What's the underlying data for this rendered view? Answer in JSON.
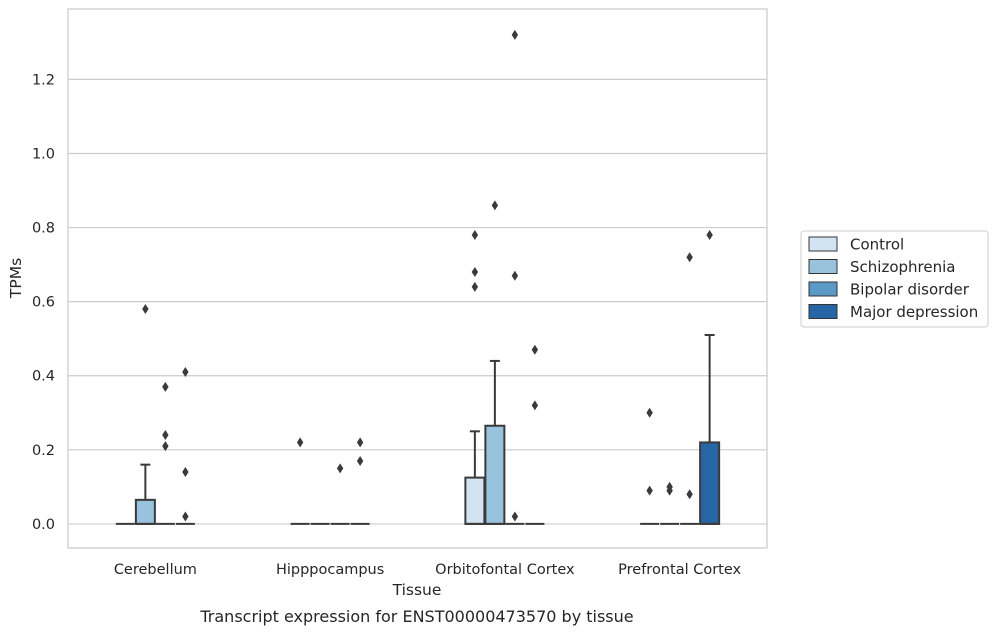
{
  "chart_data": {
    "type": "boxplot",
    "title": "Transcript expression for ENST00000473570 by tissue",
    "xlabel": "Tissue",
    "ylabel": "TPMs",
    "ylim": [
      -0.065,
      1.39
    ],
    "yticks": [
      0.0,
      0.2,
      0.4,
      0.6,
      0.8,
      1.0,
      1.2
    ],
    "ytick_labels": [
      "0.0",
      "0.2",
      "0.4",
      "0.6",
      "0.8",
      "1.0",
      "1.2"
    ],
    "categories": [
      "Cerebellum",
      "Hipppocampus",
      "Orbitofontal Cortex",
      "Prefrontal Cortex"
    ],
    "grid": "horizontal",
    "legend_position": "right",
    "series": [
      {
        "name": "Control",
        "color": "#d4e3f1",
        "boxes": [
          {
            "q1": 0,
            "median": 0,
            "q3": 0,
            "whisker_low": 0,
            "whisker_high": 0,
            "outliers": []
          },
          {
            "q1": 0,
            "median": 0,
            "q3": 0,
            "whisker_low": 0,
            "whisker_high": 0,
            "outliers": [
              0.22
            ]
          },
          {
            "q1": 0,
            "median": 0,
            "q3": 0.125,
            "whisker_low": 0,
            "whisker_high": 0.25,
            "outliers": [
              0.64,
              0.68,
              0.78
            ]
          },
          {
            "q1": 0,
            "median": 0,
            "q3": 0,
            "whisker_low": 0,
            "whisker_high": 0,
            "outliers": [
              0.09,
              0.3
            ]
          }
        ]
      },
      {
        "name": "Schizophrenia",
        "color": "#99c2dc",
        "boxes": [
          {
            "q1": 0,
            "median": 0,
            "q3": 0.065,
            "whisker_low": 0,
            "whisker_high": 0.16,
            "outliers": [
              0.58
            ]
          },
          {
            "q1": 0,
            "median": 0,
            "q3": 0,
            "whisker_low": 0,
            "whisker_high": 0,
            "outliers": []
          },
          {
            "q1": 0,
            "median": 0,
            "q3": 0.265,
            "whisker_low": 0,
            "whisker_high": 0.44,
            "outliers": [
              0.86
            ]
          },
          {
            "q1": 0,
            "median": 0,
            "q3": 0,
            "whisker_low": 0,
            "whisker_high": 0,
            "outliers": [
              0.09,
              0.1
            ]
          }
        ]
      },
      {
        "name": "Bipolar disorder",
        "color": "#5b9ac7",
        "boxes": [
          {
            "q1": 0,
            "median": 0,
            "q3": 0,
            "whisker_low": 0,
            "whisker_high": 0,
            "outliers": [
              0.21,
              0.24,
              0.37
            ]
          },
          {
            "q1": 0,
            "median": 0,
            "q3": 0,
            "whisker_low": 0,
            "whisker_high": 0,
            "outliers": [
              0.15
            ]
          },
          {
            "q1": 0,
            "median": 0,
            "q3": 0,
            "whisker_low": 0,
            "whisker_high": 0,
            "outliers": [
              0.02,
              0.67,
              1.32
            ]
          },
          {
            "q1": 0,
            "median": 0,
            "q3": 0,
            "whisker_low": 0,
            "whisker_high": 0,
            "outliers": [
              0.08,
              0.72
            ]
          }
        ]
      },
      {
        "name": "Major depression",
        "color": "#2666a6",
        "boxes": [
          {
            "q1": 0,
            "median": 0,
            "q3": 0,
            "whisker_low": 0,
            "whisker_high": 0,
            "outliers": [
              0.02,
              0.14,
              0.41
            ]
          },
          {
            "q1": 0,
            "median": 0,
            "q3": 0,
            "whisker_low": 0,
            "whisker_high": 0,
            "outliers": [
              0.17,
              0.22
            ]
          },
          {
            "q1": 0,
            "median": 0,
            "q3": 0,
            "whisker_low": 0,
            "whisker_high": 0,
            "outliers": [
              0.32,
              0.47
            ]
          },
          {
            "q1": 0,
            "median": 0,
            "q3": 0.22,
            "whisker_low": 0,
            "whisker_high": 0.51,
            "outliers": [
              0.78
            ]
          }
        ]
      }
    ]
  }
}
